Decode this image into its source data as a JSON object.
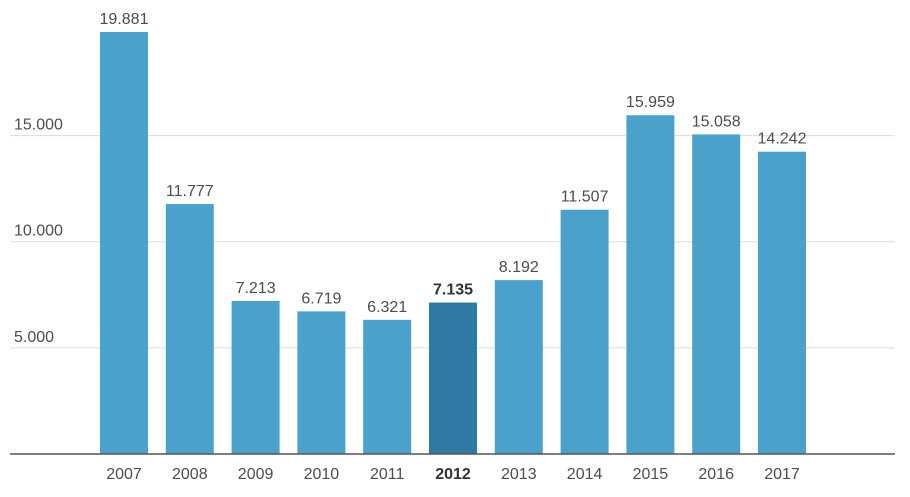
{
  "chart_data": {
    "type": "bar",
    "title": "",
    "xlabel": "",
    "ylabel": "",
    "categories": [
      "2007",
      "2008",
      "2009",
      "2010",
      "2011",
      "2012",
      "2013",
      "2014",
      "2015",
      "2016",
      "2017"
    ],
    "values": [
      19881,
      11777,
      7213,
      6719,
      6321,
      7135,
      8192,
      11507,
      15959,
      15058,
      14242
    ],
    "value_labels": [
      "19.881",
      "11.777",
      "7.213",
      "6.719",
      "6.321",
      "7.135",
      "8.192",
      "11.507",
      "15.959",
      "15.058",
      "14.242"
    ],
    "highlight_category": "2012",
    "ylim": [
      0,
      19881
    ],
    "yticks": [
      5000,
      10000,
      15000
    ],
    "ytick_labels": [
      "5.000",
      "10.000",
      "15.000"
    ],
    "grid": true,
    "colors": {
      "bar": "#4aa2cc",
      "bar_highlight": "#2e7aa3",
      "grid": "#dcdcdc",
      "axis": "#555555",
      "text": "#4d4d4d",
      "text_highlight": "#333333"
    }
  }
}
